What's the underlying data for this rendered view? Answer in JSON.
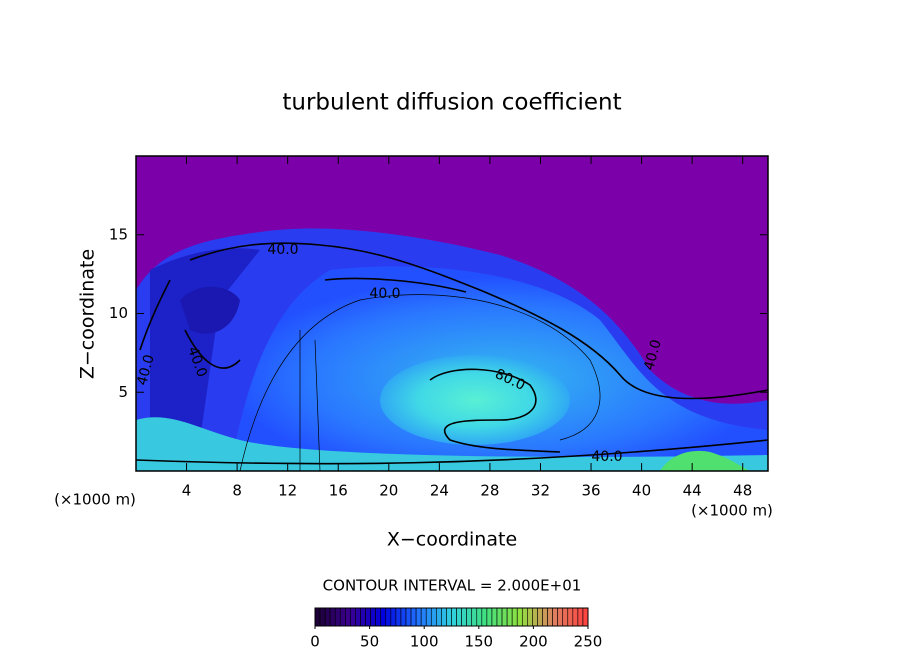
{
  "chart_data": {
    "type": "contour",
    "title": "turbulent diffusion coefficient",
    "x_label": "X−coordinate",
    "y_label": "Z−coordinate",
    "x_unit": "(×1000 m)",
    "x_unit_right": "(×1000 m)",
    "xlim": [
      0,
      50
    ],
    "xticks": [
      4,
      8,
      12,
      16,
      20,
      24,
      28,
      32,
      36,
      40,
      44,
      48
    ],
    "ylim": [
      0,
      20
    ],
    "yticks": [
      5,
      10,
      15
    ],
    "contour_interval_text": "CONTOUR INTERVAL = 2.000E+01",
    "contour_labels": [
      {
        "value": 40,
        "label": "40.0"
      },
      {
        "value": 40,
        "label": "40.0"
      },
      {
        "value": 40,
        "label": "40.0"
      },
      {
        "value": 40,
        "label": "40.0"
      },
      {
        "value": 80,
        "label": "80.0"
      },
      {
        "value": 40,
        "label": "40.0"
      },
      {
        "value": 40,
        "label": "40.0"
      }
    ],
    "clim": [
      0,
      250
    ],
    "cticks": [
      0,
      50,
      100,
      150,
      200,
      250
    ],
    "colormap": [
      "#1a0030",
      "#3a0090",
      "#0000e0",
      "#2070ff",
      "#30d0e0",
      "#40e080",
      "#90e040",
      "#e08060",
      "#ff4040"
    ]
  }
}
